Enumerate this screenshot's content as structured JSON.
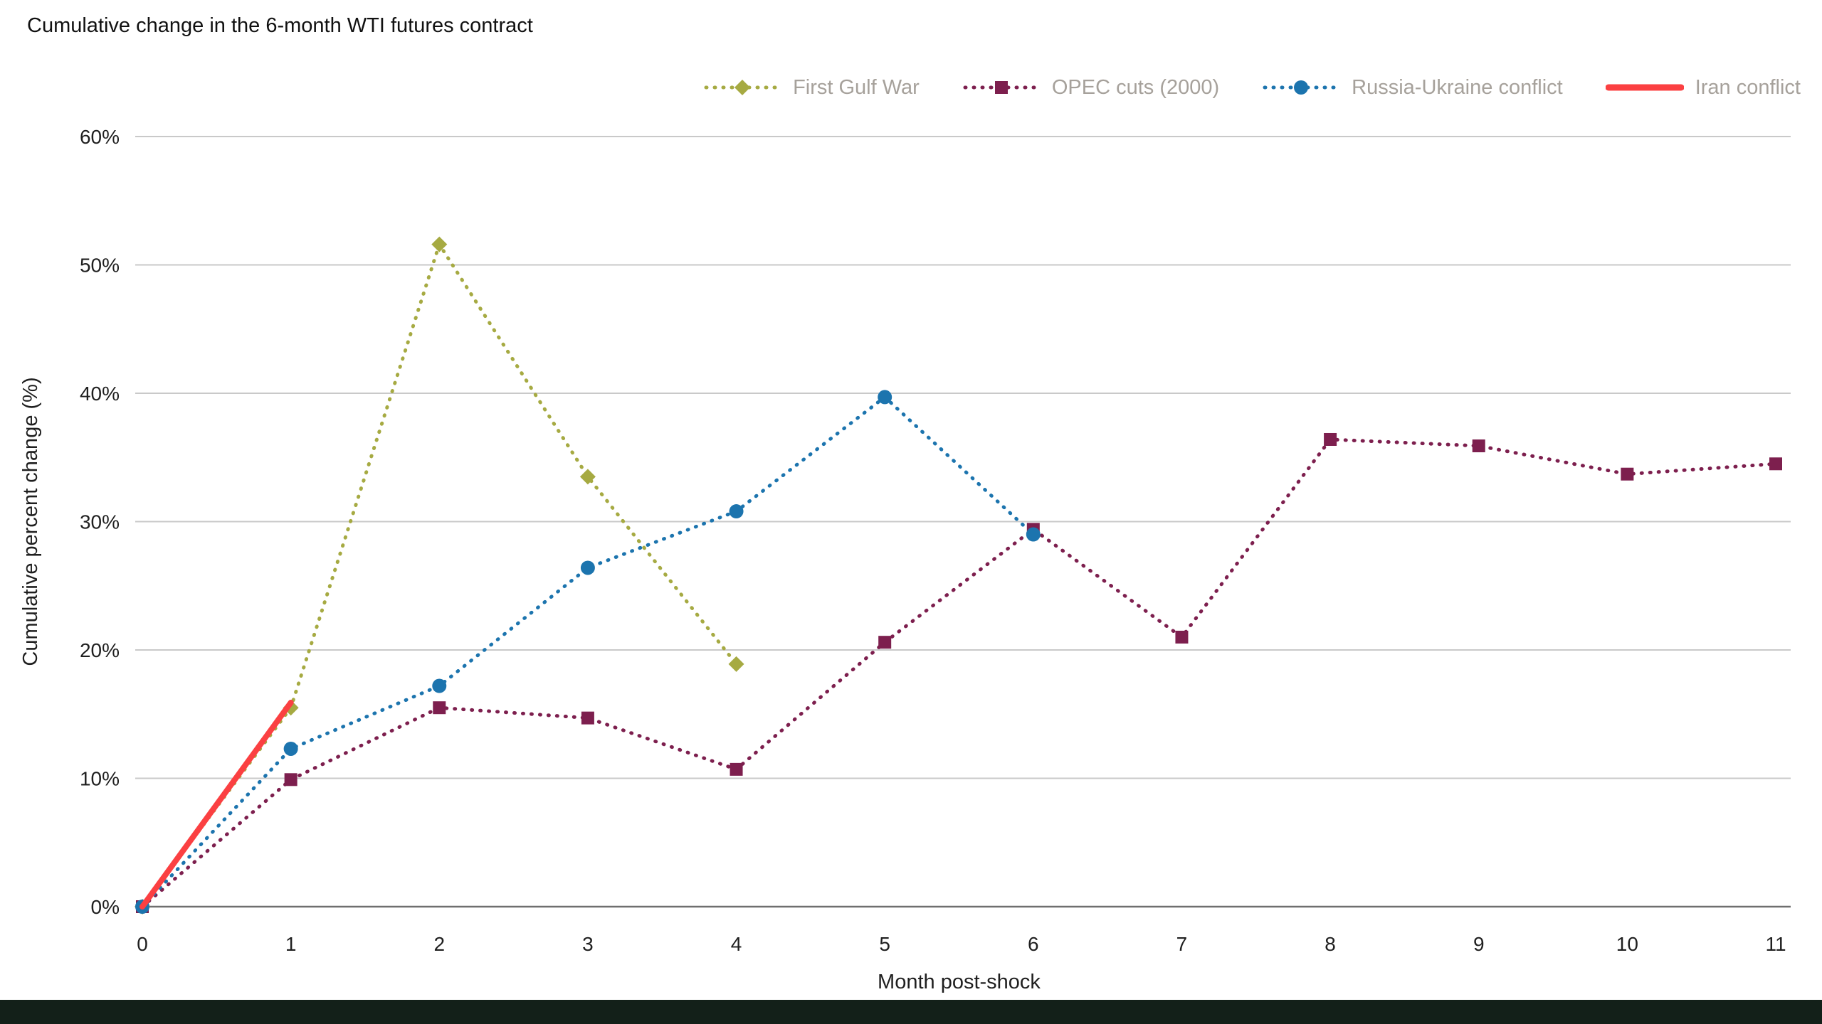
{
  "page": {
    "background": "#ffffff",
    "footer_bar_color": "#132019"
  },
  "chart_data": {
    "type": "line",
    "title": "Cumulative change in the 6-month WTI futures contract",
    "xlabel": "Month post-shock",
    "ylabel": "Cumulative percent change (%)",
    "xlim": [
      0,
      11
    ],
    "ylim": [
      0,
      60
    ],
    "xticks": [
      0,
      1,
      2,
      3,
      4,
      5,
      6,
      7,
      8,
      9,
      10,
      11
    ],
    "ytick_values": [
      0,
      10,
      20,
      30,
      40,
      50,
      60
    ],
    "ytick_labels": [
      "0%",
      "10%",
      "20%",
      "30%",
      "40%",
      "50%",
      "60%"
    ],
    "grid": "horizontal",
    "grid_color": "#c9c9c9",
    "baseline_color": "#6f6f6f",
    "tick_text_color": "#1f1f1f",
    "legend_position": "top",
    "legend_text_color": "#a6a19b",
    "series": [
      {
        "name": "First Gulf War",
        "color": "#a6aa42",
        "marker": "diamond",
        "line_style": "dotted",
        "x": [
          0,
          1,
          2,
          3,
          4
        ],
        "values": [
          0,
          15.5,
          51.6,
          33.5,
          18.9
        ]
      },
      {
        "name": "OPEC cuts (2000)",
        "color": "#7d1f4e",
        "marker": "square",
        "line_style": "dotted",
        "x": [
          0,
          1,
          2,
          3,
          4,
          5,
          6,
          7,
          8,
          9,
          10,
          11
        ],
        "values": [
          0,
          9.9,
          15.5,
          14.7,
          10.7,
          20.6,
          29.4,
          21.0,
          36.4,
          35.9,
          33.7,
          34.5
        ]
      },
      {
        "name": "Russia-Ukraine conflict",
        "color": "#1c74ae",
        "marker": "circle",
        "line_style": "dotted",
        "x": [
          0,
          1,
          2,
          3,
          4,
          5,
          6
        ],
        "values": [
          0,
          12.3,
          17.2,
          26.4,
          30.8,
          39.7,
          29.0
        ]
      },
      {
        "name": "Iran conflict",
        "color": "#fb4042",
        "marker": "none",
        "line_style": "solid",
        "x": [
          0,
          1
        ],
        "values": [
          0,
          15.9
        ]
      }
    ]
  }
}
